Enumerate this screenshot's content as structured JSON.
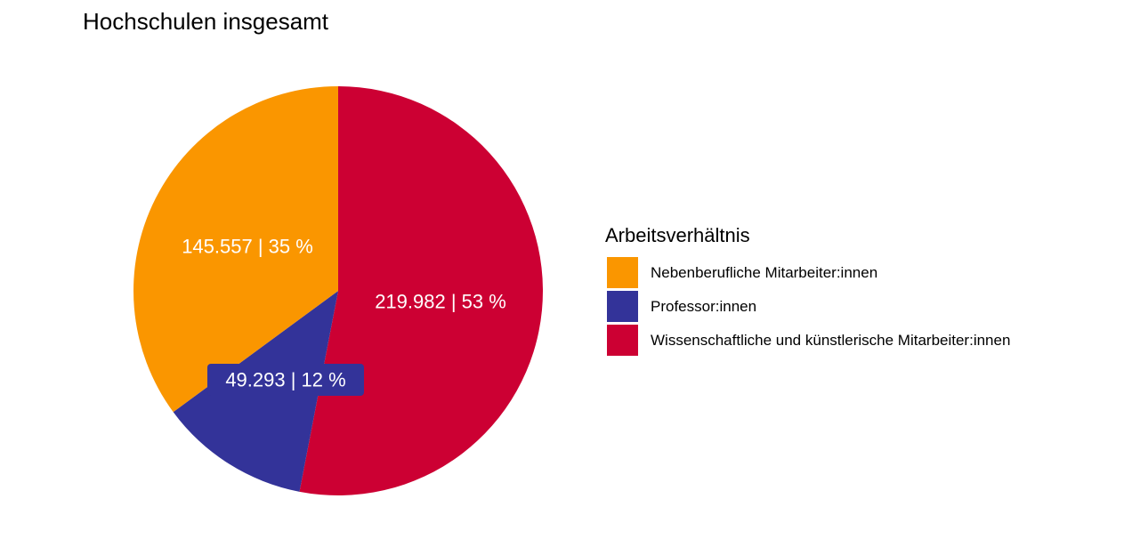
{
  "chart_data": {
    "type": "pie",
    "title": "Hochschulen insgesamt",
    "legend_title": "Arbeitsverhältnis",
    "legend_position": "right",
    "slices": [
      {
        "name": "Nebenberufliche Mitarbeiter:innen",
        "value": 145557,
        "percent": 35,
        "label": "145.557 | 35 %",
        "color": "#FA9600"
      },
      {
        "name": "Professor:innen",
        "value": 49293,
        "percent": 12,
        "label": "49.293 | 12 %",
        "color": "#333399"
      },
      {
        "name": "Wissenschaftliche und künstlerische Mitarbeiter:innen",
        "value": 219982,
        "percent": 53,
        "label": "219.982 | 53 %",
        "color": "#CC0033"
      }
    ]
  }
}
